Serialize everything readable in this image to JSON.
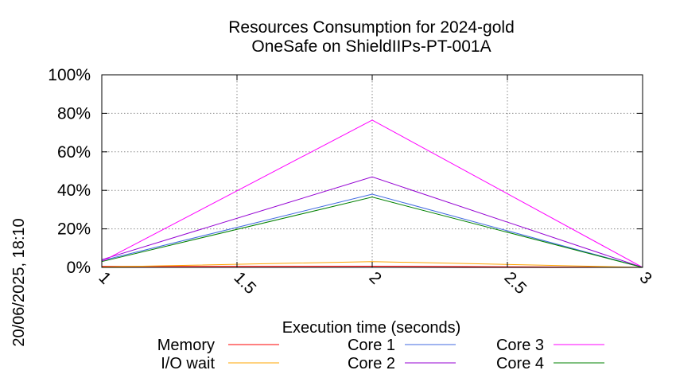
{
  "chart_data": {
    "type": "line",
    "title": [
      "Resources Consumption for 2024-gold",
      "OneSafe on ShieldIIPs-PT-001A"
    ],
    "xlabel": "Execution time (seconds)",
    "ylabel": "",
    "side_label": "20/06/2025, 18:10",
    "x": [
      1,
      2,
      3
    ],
    "xlim": [
      1,
      3
    ],
    "ylim": [
      0,
      100
    ],
    "xticks": [
      "1",
      "1.5",
      "2",
      "2.5",
      "3"
    ],
    "yticks": [
      "0%",
      "20%",
      "40%",
      "60%",
      "80%",
      "100%"
    ],
    "grid": true,
    "legend_position": "bottom",
    "series": [
      {
        "name": "Memory",
        "color": "#ff0000",
        "values": [
          0.5,
          0.6,
          0
        ]
      },
      {
        "name": "I/O wait",
        "color": "#ffa500",
        "values": [
          0.2,
          3,
          0
        ]
      },
      {
        "name": "Core 1",
        "color": "#4169e1",
        "values": [
          3.5,
          38,
          0
        ]
      },
      {
        "name": "Core 2",
        "color": "#9400d3",
        "values": [
          4,
          47,
          0
        ]
      },
      {
        "name": "Core 3",
        "color": "#ff00ff",
        "values": [
          3,
          76.5,
          0
        ]
      },
      {
        "name": "Core 4",
        "color": "#008000",
        "values": [
          3,
          36.5,
          0
        ]
      }
    ]
  }
}
